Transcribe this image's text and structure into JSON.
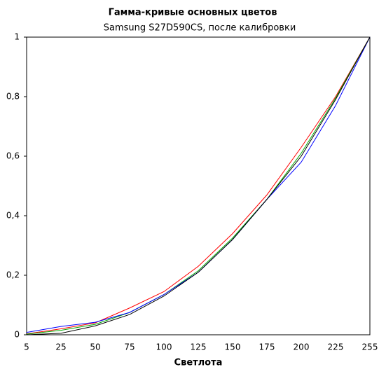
{
  "chart_data": {
    "type": "line",
    "title": "Гамма-кривые  основных цветов",
    "subtitle": "Samsung S27D590CS, после калибровки",
    "x_label": "Светлота",
    "categories": [
      "5",
      "25",
      "50",
      "75",
      "100",
      "125",
      "150",
      "175",
      "200",
      "225",
      "255"
    ],
    "series": [
      {
        "color": "#ff0000",
        "values": [
          0.003,
          0.02,
          0.04,
          0.09,
          0.145,
          0.23,
          0.34,
          0.47,
          0.63,
          0.8,
          1
        ]
      },
      {
        "color": "#00aa00",
        "values": [
          0.002,
          0.015,
          0.035,
          0.075,
          0.135,
          0.215,
          0.325,
          0.455,
          0.61,
          0.795,
          1
        ]
      },
      {
        "color": "#0000ff",
        "values": [
          0.008,
          0.028,
          0.042,
          0.075,
          0.135,
          0.21,
          0.32,
          0.455,
          0.58,
          0.77,
          1
        ]
      },
      {
        "color": "#000000",
        "values": [
          0,
          0.005,
          0.03,
          0.068,
          0.13,
          0.21,
          0.32,
          0.455,
          0.6,
          0.79,
          1
        ]
      }
    ],
    "ylim": [
      0,
      1
    ],
    "yticks": [
      0,
      {
        "value": 0.2,
        "label": "0,2"
      },
      {
        "value": 0.4,
        "label": "0,4"
      },
      {
        "value": 0.6,
        "label": "0,6"
      },
      {
        "value": 0.8,
        "label": "0,8"
      },
      1
    ],
    "grid": false
  }
}
